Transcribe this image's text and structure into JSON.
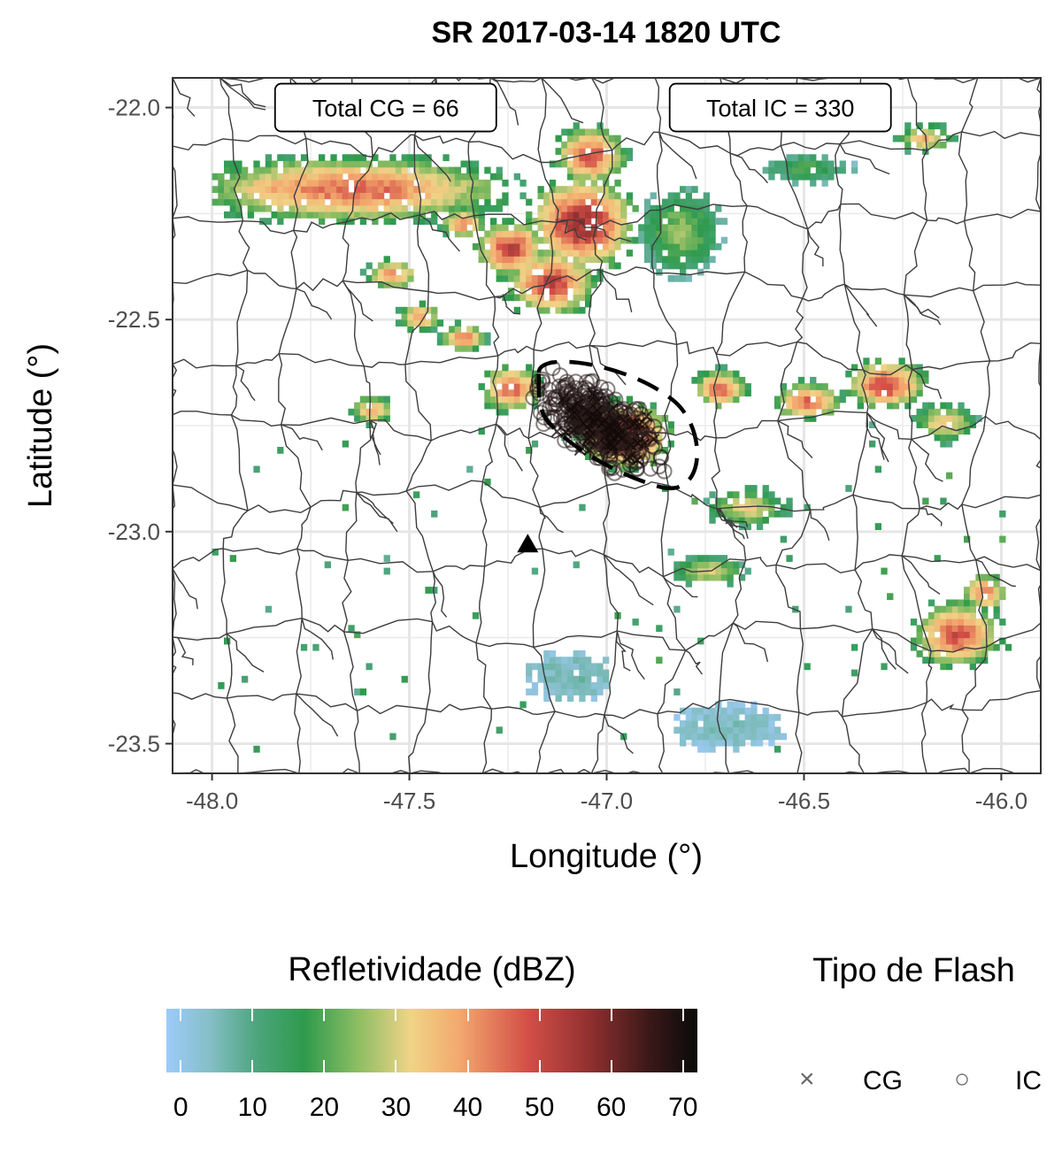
{
  "chart_data": {
    "type": "heatmap",
    "title": "SR 2017-03-14 1820 UTC",
    "xlabel": "Longitude (°)",
    "ylabel": "Latitude (°)",
    "xlim": [
      -48.1,
      -45.9
    ],
    "ylim": [
      -23.57,
      -21.93
    ],
    "x_ticks": [
      -48.0,
      -47.5,
      -47.0,
      -46.5,
      -46.0
    ],
    "x_tick_labels": [
      "-48.0",
      "-47.5",
      "-47.0",
      "-46.5",
      "-46.0"
    ],
    "y_ticks": [
      -22.0,
      -22.5,
      -23.0,
      -23.5
    ],
    "y_tick_labels": [
      "-22.0",
      "-22.5",
      "-23.0",
      "-23.5"
    ],
    "annotations": [
      {
        "text": "Total CG = 66",
        "x": -47.56,
        "y": -22.0
      },
      {
        "text": "Total IC = 330",
        "x": -46.56,
        "y": -22.0
      }
    ],
    "radar_site": {
      "lon": -47.2,
      "lat": -23.03,
      "marker": "triangle"
    },
    "cell_outline": {
      "center_lon": -46.97,
      "center_lat": -22.75,
      "style": "dashed ellipse"
    },
    "flash_clusters": [
      {
        "type": "IC",
        "center_lon": -47.05,
        "center_lat": -22.72,
        "spread_lon": 0.09,
        "spread_lat": 0.06,
        "count": 220
      },
      {
        "type": "IC",
        "center_lon": -46.96,
        "center_lat": -22.79,
        "spread_lon": 0.08,
        "spread_lat": 0.05,
        "count": 110
      },
      {
        "type": "CG",
        "center_lon": -47.0,
        "center_lat": -22.76,
        "spread_lon": 0.08,
        "spread_lat": 0.05,
        "count": 66
      }
    ],
    "reflectivity_cells": [
      {
        "lon": -47.65,
        "lat": -22.2,
        "rx": 0.35,
        "ry": 0.07,
        "peak_dbz": 48
      },
      {
        "lon": -47.85,
        "lat": -22.2,
        "rx": 0.12,
        "ry": 0.05,
        "peak_dbz": 42
      },
      {
        "lon": -47.05,
        "lat": -22.12,
        "rx": 0.08,
        "ry": 0.06,
        "peak_dbz": 50
      },
      {
        "lon": -47.07,
        "lat": -22.28,
        "rx": 0.12,
        "ry": 0.1,
        "peak_dbz": 56
      },
      {
        "lon": -47.25,
        "lat": -22.34,
        "rx": 0.08,
        "ry": 0.06,
        "peak_dbz": 52
      },
      {
        "lon": -47.15,
        "lat": -22.42,
        "rx": 0.1,
        "ry": 0.07,
        "peak_dbz": 52
      },
      {
        "lon": -47.37,
        "lat": -22.28,
        "rx": 0.05,
        "ry": 0.03,
        "peak_dbz": 46
      },
      {
        "lon": -47.55,
        "lat": -22.4,
        "rx": 0.06,
        "ry": 0.03,
        "peak_dbz": 45
      },
      {
        "lon": -47.48,
        "lat": -22.5,
        "rx": 0.05,
        "ry": 0.03,
        "peak_dbz": 44
      },
      {
        "lon": -47.37,
        "lat": -22.55,
        "rx": 0.05,
        "ry": 0.03,
        "peak_dbz": 46
      },
      {
        "lon": -47.25,
        "lat": -22.67,
        "rx": 0.07,
        "ry": 0.05,
        "peak_dbz": 48
      },
      {
        "lon": -47.6,
        "lat": -22.72,
        "rx": 0.05,
        "ry": 0.03,
        "peak_dbz": 42
      },
      {
        "lon": -46.96,
        "lat": -22.78,
        "rx": 0.1,
        "ry": 0.07,
        "peak_dbz": 55
      },
      {
        "lon": -46.72,
        "lat": -22.67,
        "rx": 0.06,
        "ry": 0.04,
        "peak_dbz": 48
      },
      {
        "lon": -46.5,
        "lat": -22.7,
        "rx": 0.08,
        "ry": 0.04,
        "peak_dbz": 47
      },
      {
        "lon": -46.3,
        "lat": -22.66,
        "rx": 0.09,
        "ry": 0.05,
        "peak_dbz": 52
      },
      {
        "lon": -46.15,
        "lat": -22.75,
        "rx": 0.07,
        "ry": 0.04,
        "peak_dbz": 38
      },
      {
        "lon": -46.65,
        "lat": -22.95,
        "rx": 0.09,
        "ry": 0.04,
        "peak_dbz": 35
      },
      {
        "lon": -46.75,
        "lat": -23.1,
        "rx": 0.08,
        "ry": 0.03,
        "peak_dbz": 35
      },
      {
        "lon": -46.12,
        "lat": -23.25,
        "rx": 0.1,
        "ry": 0.07,
        "peak_dbz": 50
      },
      {
        "lon": -46.05,
        "lat": -23.15,
        "rx": 0.05,
        "ry": 0.04,
        "peak_dbz": 46
      },
      {
        "lon": -46.2,
        "lat": -22.08,
        "rx": 0.06,
        "ry": 0.03,
        "peak_dbz": 40
      },
      {
        "lon": -46.5,
        "lat": -22.15,
        "rx": 0.1,
        "ry": 0.03,
        "peak_dbz": 22
      },
      {
        "lon": -46.82,
        "lat": -22.3,
        "rx": 0.09,
        "ry": 0.09,
        "peak_dbz": 28
      },
      {
        "lon": -47.1,
        "lat": -23.35,
        "rx": 0.1,
        "ry": 0.05,
        "peak_dbz": 8
      },
      {
        "lon": -46.7,
        "lat": -23.47,
        "rx": 0.12,
        "ry": 0.05,
        "peak_dbz": 6
      }
    ]
  },
  "legend": {
    "fill_title": "Refletividade (dBZ)",
    "fill_range": [
      -2,
      72
    ],
    "fill_ticks": [
      0,
      10,
      20,
      30,
      40,
      50,
      60,
      70
    ],
    "fill_tick_labels": [
      "0",
      "10",
      "20",
      "30",
      "40",
      "50",
      "60",
      "70"
    ],
    "fill_colors": [
      "#9dcbfa",
      "#86bfc8",
      "#4da57d",
      "#2e9a4c",
      "#8cbd63",
      "#f0d487",
      "#f3a96e",
      "#d34f47",
      "#8f2f2f",
      "#3a1818",
      "#0a0a0a"
    ],
    "shape_title": "Tipo de Flash",
    "shape_items": [
      {
        "label": "CG",
        "symbol": "×"
      },
      {
        "label": "IC",
        "symbol": "○"
      }
    ]
  }
}
